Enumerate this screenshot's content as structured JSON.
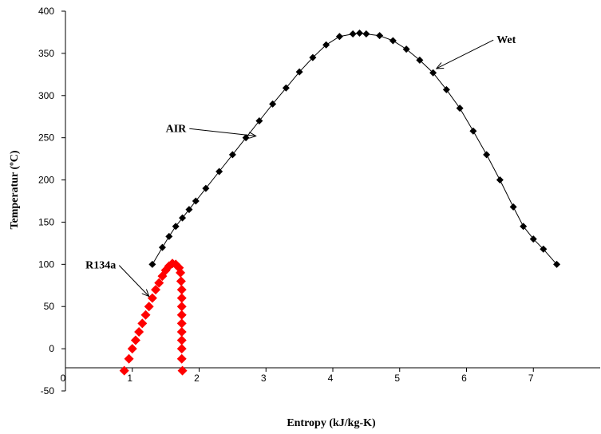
{
  "chart_data": {
    "type": "scatter",
    "title": "",
    "xlabel": "Entropy (kJ/kg-K)",
    "ylabel": "Temperatur (ºC)",
    "xlim": [
      0,
      8
    ],
    "ylim": [
      -50,
      400
    ],
    "x_ticks": [
      0,
      1,
      2,
      3,
      4,
      5,
      6,
      7
    ],
    "y_ticks": [
      -50,
      0,
      50,
      100,
      150,
      200,
      250,
      300,
      350,
      400
    ],
    "grid": false,
    "legend": "none",
    "series": [
      {
        "color": "#000000",
        "marker": "diamond",
        "connected": true,
        "points": [
          [
            1.3,
            99.97
          ],
          [
            1.45,
            120
          ],
          [
            1.55,
            133
          ],
          [
            1.65,
            145
          ],
          [
            1.75,
            155
          ],
          [
            1.85,
            165
          ],
          [
            1.95,
            175
          ],
          [
            2.1,
            190
          ],
          [
            2.3,
            210
          ],
          [
            2.5,
            230
          ],
          [
            2.7,
            250
          ],
          [
            2.9,
            270
          ],
          [
            3.1,
            290
          ],
          [
            3.3,
            309
          ],
          [
            3.5,
            328
          ],
          [
            3.7,
            345
          ],
          [
            3.9,
            360
          ],
          [
            4.1,
            370
          ],
          [
            4.3,
            373
          ],
          [
            4.4,
            374
          ],
          [
            4.5,
            373
          ],
          [
            4.7,
            371
          ],
          [
            4.9,
            365
          ],
          [
            5.1,
            355
          ],
          [
            5.3,
            342
          ],
          [
            5.5,
            327
          ],
          [
            5.7,
            307
          ],
          [
            5.9,
            285
          ],
          [
            6.1,
            258
          ],
          [
            6.3,
            230
          ],
          [
            6.5,
            200
          ],
          [
            6.7,
            168
          ],
          [
            6.85,
            145
          ],
          [
            7.0,
            130
          ],
          [
            7.15,
            118
          ],
          [
            7.35,
            99.97
          ]
        ]
      },
      {
        "color": "#ff0000",
        "marker": "diamond",
        "connected": false,
        "points": [
          [
            0.88,
            -26
          ],
          [
            0.95,
            -12
          ],
          [
            1.0,
            0
          ],
          [
            1.05,
            10
          ],
          [
            1.1,
            20
          ],
          [
            1.15,
            30
          ],
          [
            1.2,
            40
          ],
          [
            1.25,
            50
          ],
          [
            1.3,
            60
          ],
          [
            1.35,
            70
          ],
          [
            1.4,
            78
          ],
          [
            1.45,
            86
          ],
          [
            1.5,
            93
          ],
          [
            1.55,
            98
          ],
          [
            1.6,
            101
          ],
          [
            1.65,
            100
          ],
          [
            1.7,
            96
          ],
          [
            1.72,
            90
          ],
          [
            1.73,
            80
          ],
          [
            1.74,
            70
          ],
          [
            1.74,
            60
          ],
          [
            1.74,
            50
          ],
          [
            1.74,
            40
          ],
          [
            1.74,
            30
          ],
          [
            1.74,
            20
          ],
          [
            1.74,
            10
          ],
          [
            1.74,
            0
          ],
          [
            1.74,
            -12
          ],
          [
            1.75,
            -26
          ]
        ]
      }
    ],
    "annotations": [
      {
        "text": "Wet",
        "label_at": [
          6.45,
          362
        ],
        "arrow_to": [
          5.55,
          332
        ]
      },
      {
        "text": "AIR",
        "label_at": [
          1.5,
          257
        ],
        "arrow_to": [
          2.85,
          252
        ]
      },
      {
        "text": "R134a",
        "label_at": [
          0.3,
          95
        ],
        "arrow_to": [
          1.25,
          62
        ]
      }
    ]
  }
}
